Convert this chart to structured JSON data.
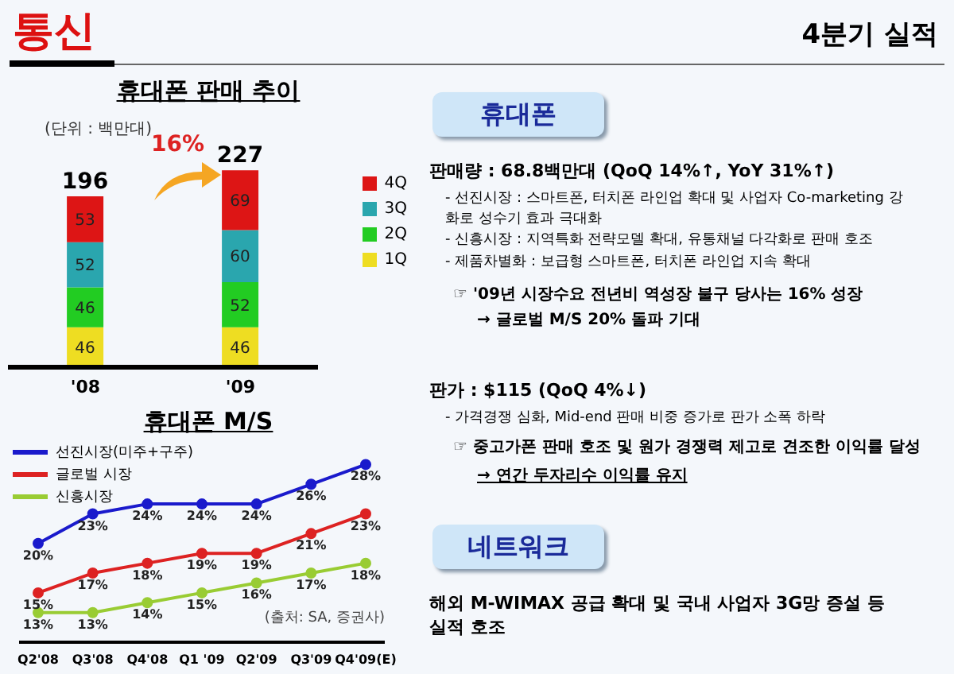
{
  "chart_data": [
    {
      "type": "bar",
      "title": "휴대폰 판매 추이",
      "stacked": true,
      "categories": [
        "'08",
        "'09"
      ],
      "series": [
        {
          "name": "1Q",
          "color": "#eedd22",
          "values": [
            46,
            46
          ]
        },
        {
          "name": "2Q",
          "color": "#22cc22",
          "values": [
            46,
            52
          ]
        },
        {
          "name": "3Q",
          "color": "#2aa6ae",
          "values": [
            52,
            60
          ]
        },
        {
          "name": "4Q",
          "color": "#dd1515",
          "values": [
            53,
            69
          ]
        }
      ],
      "data_labels": true,
      "totals": [
        "196",
        "227"
      ],
      "legend": "right",
      "annotations": [
        "(단위 : 백만대)",
        "16%"
      ]
    },
    {
      "type": "line",
      "title": "휴대폰 M/S",
      "categories": [
        "Q2'08",
        "Q3'08",
        "Q4'08",
        "Q1 '09",
        "Q2'09",
        "Q3'09",
        "Q4'09(E)"
      ],
      "series": [
        {
          "name": "선진시장(미주+구주)",
          "color": "#1a1acc",
          "values": [
            20,
            23,
            24,
            24,
            24,
            26,
            28
          ],
          "value_labels": [
            "20%",
            "23%",
            "24%",
            "24%",
            "24%",
            "26%",
            "28%"
          ]
        },
        {
          "name": "글로벌 시장",
          "color": "#dd2222",
          "values": [
            15,
            17,
            18,
            19,
            19,
            21,
            23
          ],
          "value_labels": [
            "15%",
            "17%",
            "18%",
            "19%",
            "19%",
            "21%",
            "23%"
          ]
        },
        {
          "name": "신흥시장",
          "color": "#99cc33",
          "values": [
            13,
            13,
            14,
            15,
            16,
            17,
            18
          ],
          "value_labels": [
            "13%",
            "13%",
            "14%",
            "15%",
            "16%",
            "17%",
            "18%"
          ]
        }
      ],
      "marker": "circle",
      "legend": "top left",
      "annotations": [
        "(출처: SA, 증권사)"
      ]
    },
    {
      "type": "other",
      "title": "통신",
      "subtitle": "4분기 실적",
      "annotations": [
        "휴대폰",
        "판매량 : 68.8백만대 (QoQ 14%↑, YoY 31%↑)",
        "- 선진시장 : 스마트폰, 터치폰 라인업 확대 및 사업자 Co-marketing 강화로 성수기 효과 극대화",
        "- 신흥시장 : 지역특화 전략모델 확대, 유통채널 다각화로 판매 호조",
        "- 제품차별화 : 보급형 스마트폰, 터치폰 라인업 지속 확대",
        "☞ '09년 시장수요 전년비 역성장 불구 당사는 16% 성장",
        "→ 글로벌 M/S 20% 돌파 기대",
        "판가 : $115 (QoQ 4%↓)",
        "- 가격경쟁 심화, Mid-end 판매 비중 증가로 판가 소폭 하락",
        "☞ 중고가폰 판매 호조 및 원가 경쟁력 제고로 견조한 이익률 달성",
        "→ 연간 두자리수 이익률 유지",
        "네트워크",
        "해외 M-WIMAX 공급 확대 및 국내 사업자 3G망 증설 등 실적 호조"
      ]
    }
  ]
}
